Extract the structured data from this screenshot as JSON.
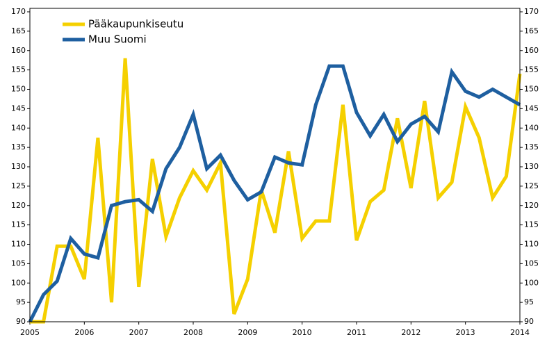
{
  "chart_data": {
    "type": "line",
    "categories": [
      "2005",
      null,
      null,
      null,
      "2006",
      null,
      null,
      null,
      "2007",
      null,
      null,
      null,
      "2008",
      null,
      null,
      null,
      "2009",
      null,
      null,
      null,
      "2010",
      null,
      null,
      null,
      "2011",
      null,
      null,
      null,
      "2012",
      null,
      null,
      null,
      "2013",
      null,
      null,
      null,
      "2014"
    ],
    "series": [
      {
        "name": "Pääkaupunkiseutu",
        "color": "#f5d000",
        "values": [
          90,
          90,
          109.5,
          109.5,
          101,
          137.5,
          95,
          158,
          99,
          132,
          112,
          122,
          129,
          124,
          131,
          92,
          101,
          124,
          113,
          134,
          111.5,
          116,
          116,
          146,
          111,
          121,
          124,
          142.5,
          124.5,
          147,
          122,
          126,
          145.5,
          137.5,
          122,
          127.5,
          154
        ]
      },
      {
        "name": "Muu Suomi",
        "color": "#1e5fa0",
        "values": [
          90,
          97,
          100.5,
          111.5,
          107.5,
          106.5,
          120,
          121,
          121.5,
          118.5,
          129.5,
          135,
          143.5,
          129.5,
          133,
          126.5,
          121.5,
          123.5,
          132.5,
          131,
          130.5,
          146,
          156,
          156,
          144,
          138,
          143.5,
          136.5,
          141,
          143,
          139,
          154.5,
          149.5,
          148,
          150,
          148,
          146
        ]
      }
    ],
    "ylim": [
      90,
      170
    ],
    "yticks": [
      90,
      95,
      100,
      105,
      110,
      115,
      120,
      125,
      130,
      135,
      140,
      145,
      150,
      155,
      160,
      165,
      170
    ],
    "y2lim": [
      90,
      170
    ],
    "y2ticks": [
      90,
      95,
      100,
      105,
      110,
      115,
      120,
      125,
      130,
      135,
      140,
      145,
      150,
      155,
      160,
      165,
      170
    ],
    "legend": "upper left",
    "grid": false
  }
}
